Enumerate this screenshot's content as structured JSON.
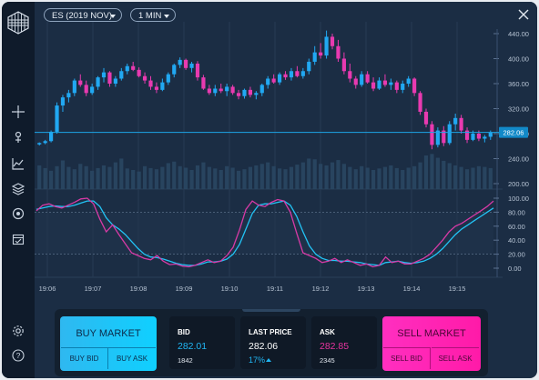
{
  "toolbar": {
    "symbol": "ES (2019 NOV)",
    "interval": "1 MIN"
  },
  "sidebar": {
    "items": [
      "crosshair-icon",
      "pointer-icon",
      "line-chart-icon",
      "layers-icon",
      "target-icon",
      "calendar-icon",
      "settings-icon",
      "help-icon"
    ]
  },
  "chart_data": {
    "type": "candlestick",
    "x_ticks": [
      "19:06",
      "19:07",
      "19:08",
      "19:09",
      "19:10",
      "19:11",
      "19:12",
      "19:13",
      "19:14",
      "19:15"
    ],
    "y_ticks": [
      "440.00",
      "400.00",
      "360.00",
      "320.00",
      "280.00",
      "240.00",
      "200.00"
    ],
    "ylim": [
      200,
      440
    ],
    "current_price": "282.06",
    "up_color": "#21a8f2",
    "down_color": "#e83ab0",
    "candles": [
      [
        263,
        266,
        261,
        265
      ],
      [
        265,
        270,
        263,
        268
      ],
      [
        268,
        285,
        266,
        283
      ],
      [
        283,
        330,
        280,
        325
      ],
      [
        325,
        342,
        315,
        338
      ],
      [
        338,
        350,
        330,
        345
      ],
      [
        345,
        368,
        340,
        365
      ],
      [
        365,
        375,
        355,
        358
      ],
      [
        358,
        365,
        340,
        345
      ],
      [
        345,
        360,
        342,
        355
      ],
      [
        355,
        372,
        350,
        370
      ],
      [
        370,
        385,
        362,
        378
      ],
      [
        378,
        380,
        355,
        360
      ],
      [
        360,
        372,
        355,
        368
      ],
      [
        368,
        385,
        365,
        380
      ],
      [
        380,
        392,
        375,
        388
      ],
      [
        388,
        395,
        380,
        382
      ],
      [
        382,
        386,
        370,
        372
      ],
      [
        372,
        378,
        360,
        365
      ],
      [
        365,
        372,
        350,
        355
      ],
      [
        355,
        362,
        345,
        350
      ],
      [
        350,
        368,
        348,
        362
      ],
      [
        362,
        378,
        358,
        375
      ],
      [
        375,
        392,
        370,
        390
      ],
      [
        390,
        402,
        385,
        398
      ],
      [
        398,
        400,
        382,
        385
      ],
      [
        385,
        395,
        378,
        392
      ],
      [
        392,
        396,
        365,
        370
      ],
      [
        370,
        374,
        350,
        352
      ],
      [
        352,
        358,
        342,
        345
      ],
      [
        345,
        358,
        340,
        352
      ],
      [
        352,
        360,
        345,
        348
      ],
      [
        348,
        360,
        340,
        355
      ],
      [
        355,
        358,
        342,
        345
      ],
      [
        345,
        350,
        335,
        340
      ],
      [
        340,
        352,
        336,
        350
      ],
      [
        350,
        355,
        338,
        342
      ],
      [
        342,
        348,
        335,
        345
      ],
      [
        345,
        360,
        340,
        358
      ],
      [
        358,
        372,
        352,
        368
      ],
      [
        368,
        375,
        360,
        362
      ],
      [
        362,
        378,
        358,
        375
      ],
      [
        375,
        380,
        366,
        370
      ],
      [
        370,
        385,
        365,
        380
      ],
      [
        380,
        388,
        370,
        372
      ],
      [
        372,
        385,
        368,
        380
      ],
      [
        380,
        400,
        375,
        395
      ],
      [
        395,
        420,
        390,
        410
      ],
      [
        410,
        425,
        400,
        405
      ],
      [
        405,
        445,
        400,
        435
      ],
      [
        435,
        440,
        415,
        420
      ],
      [
        420,
        430,
        395,
        400
      ],
      [
        400,
        410,
        375,
        380
      ],
      [
        380,
        392,
        362,
        368
      ],
      [
        368,
        372,
        352,
        358
      ],
      [
        358,
        380,
        355,
        375
      ],
      [
        375,
        380,
        360,
        362
      ],
      [
        362,
        370,
        348,
        352
      ],
      [
        352,
        370,
        350,
        365
      ],
      [
        365,
        375,
        355,
        358
      ],
      [
        358,
        368,
        350,
        362
      ],
      [
        362,
        365,
        345,
        350
      ],
      [
        350,
        365,
        345,
        360
      ],
      [
        360,
        372,
        355,
        368
      ],
      [
        368,
        370,
        340,
        345
      ],
      [
        345,
        348,
        310,
        315
      ],
      [
        315,
        320,
        290,
        295
      ],
      [
        295,
        300,
        255,
        262
      ],
      [
        262,
        290,
        258,
        285
      ],
      [
        285,
        292,
        260,
        265
      ],
      [
        265,
        300,
        262,
        295
      ],
      [
        295,
        312,
        285,
        305
      ],
      [
        305,
        310,
        280,
        285
      ],
      [
        285,
        290,
        265,
        270
      ],
      [
        270,
        285,
        268,
        280
      ],
      [
        280,
        285,
        268,
        272
      ],
      [
        272,
        278,
        266,
        275
      ],
      [
        275,
        285,
        270,
        282
      ]
    ],
    "volume": [
      62,
      55,
      48,
      60,
      75,
      58,
      52,
      66,
      60,
      48,
      55,
      62,
      58,
      70,
      80,
      54,
      50,
      46,
      60,
      55,
      52,
      58,
      68,
      72,
      60,
      56,
      50,
      62,
      70,
      58,
      54,
      50,
      60,
      56,
      48,
      52,
      58,
      62,
      66,
      70,
      60,
      54,
      52,
      58,
      64,
      70,
      80,
      78,
      66,
      62,
      70,
      76,
      66,
      58,
      52,
      60,
      56,
      50,
      54,
      58,
      62,
      55,
      50,
      56,
      60,
      70,
      88,
      92,
      82,
      74,
      68,
      62,
      58,
      52,
      56,
      60,
      58,
      55
    ],
    "oscillator": {
      "y_ticks": [
        "100.00",
        "80.00",
        "60.00",
        "40.00",
        "20.00",
        "0.00"
      ],
      "ylim": [
        0,
        100
      ],
      "upper_band": 80,
      "lower_band": 20,
      "fast": [
        82,
        90,
        92,
        88,
        86,
        90,
        94,
        99,
        100,
        92,
        70,
        52,
        62,
        48,
        35,
        22,
        18,
        14,
        12,
        18,
        10,
        5,
        6,
        3,
        2,
        4,
        8,
        12,
        8,
        10,
        18,
        30,
        55,
        84,
        96,
        90,
        88,
        94,
        98,
        96,
        80,
        50,
        22,
        18,
        14,
        8,
        10,
        14,
        8,
        12,
        8,
        4,
        6,
        2,
        4,
        16,
        8,
        10,
        6,
        6,
        10,
        14,
        20,
        30,
        40,
        52,
        60,
        64,
        70,
        76,
        82,
        88,
        96
      ],
      "slow": [
        84,
        86,
        88,
        89,
        88,
        88,
        90,
        93,
        96,
        96,
        88,
        72,
        62,
        56,
        48,
        38,
        28,
        20,
        16,
        15,
        13,
        10,
        7,
        5,
        4,
        4,
        6,
        9,
        9,
        10,
        13,
        20,
        34,
        56,
        78,
        90,
        92,
        92,
        94,
        96,
        90,
        74,
        52,
        32,
        20,
        14,
        11,
        11,
        10,
        10,
        9,
        8,
        6,
        5,
        4,
        8,
        9,
        10,
        8,
        7,
        8,
        10,
        14,
        20,
        28,
        38,
        48,
        56,
        62,
        68,
        74,
        80,
        86
      ]
    }
  },
  "trade_panel": {
    "buy_market": "BUY MARKET",
    "buy_bid": "BUY BID",
    "buy_ask": "BUY ASK",
    "bid_label": "BID",
    "bid_value": "282.01",
    "bid_size": "1842",
    "last_label": "LAST PRICE",
    "last_value": "282.06",
    "last_change": "17%",
    "ask_label": "ASK",
    "ask_value": "282.85",
    "ask_size": "2345",
    "sell_market": "SELL MARKET",
    "sell_bid": "SELL BID",
    "sell_ask": "SELL ASK"
  },
  "colors": {
    "buy": "#1fb6f0",
    "sell": "#ff29b6",
    "background": "#1b2d44"
  }
}
